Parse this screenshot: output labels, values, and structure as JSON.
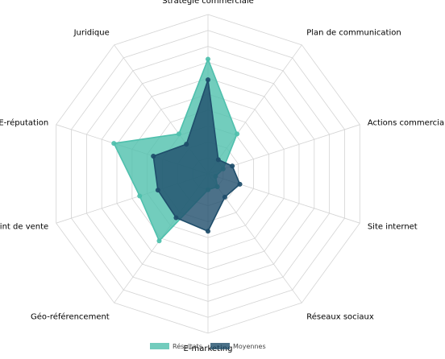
{
  "chart_data": {
    "type": "radar",
    "title": "",
    "categories": [
      "Stratégie commerciale",
      "Plan de communication",
      "Actions commerciales",
      "Site internet",
      "Réseaux sociaux",
      "E-marketing",
      "Géo-référencement",
      "Point de vente",
      "E-réputation",
      "Juridique"
    ],
    "range": [
      0,
      10
    ],
    "grid_levels": 10,
    "grid": true,
    "legend_position": "bottom",
    "series": [
      {
        "name": "Résultats",
        "values": [
          7.2,
          3.1,
          1.0,
          0.5,
          1.0,
          1.0,
          5.2,
          4.5,
          6.2,
          3.1
        ],
        "color": "#4fc0ad"
      },
      {
        "name": "Moyennes",
        "values": [
          5.9,
          1.1,
          1.6,
          2.1,
          1.8,
          3.6,
          3.4,
          3.3,
          3.6,
          2.3
        ],
        "color": "#1f4e6b"
      }
    ]
  }
}
